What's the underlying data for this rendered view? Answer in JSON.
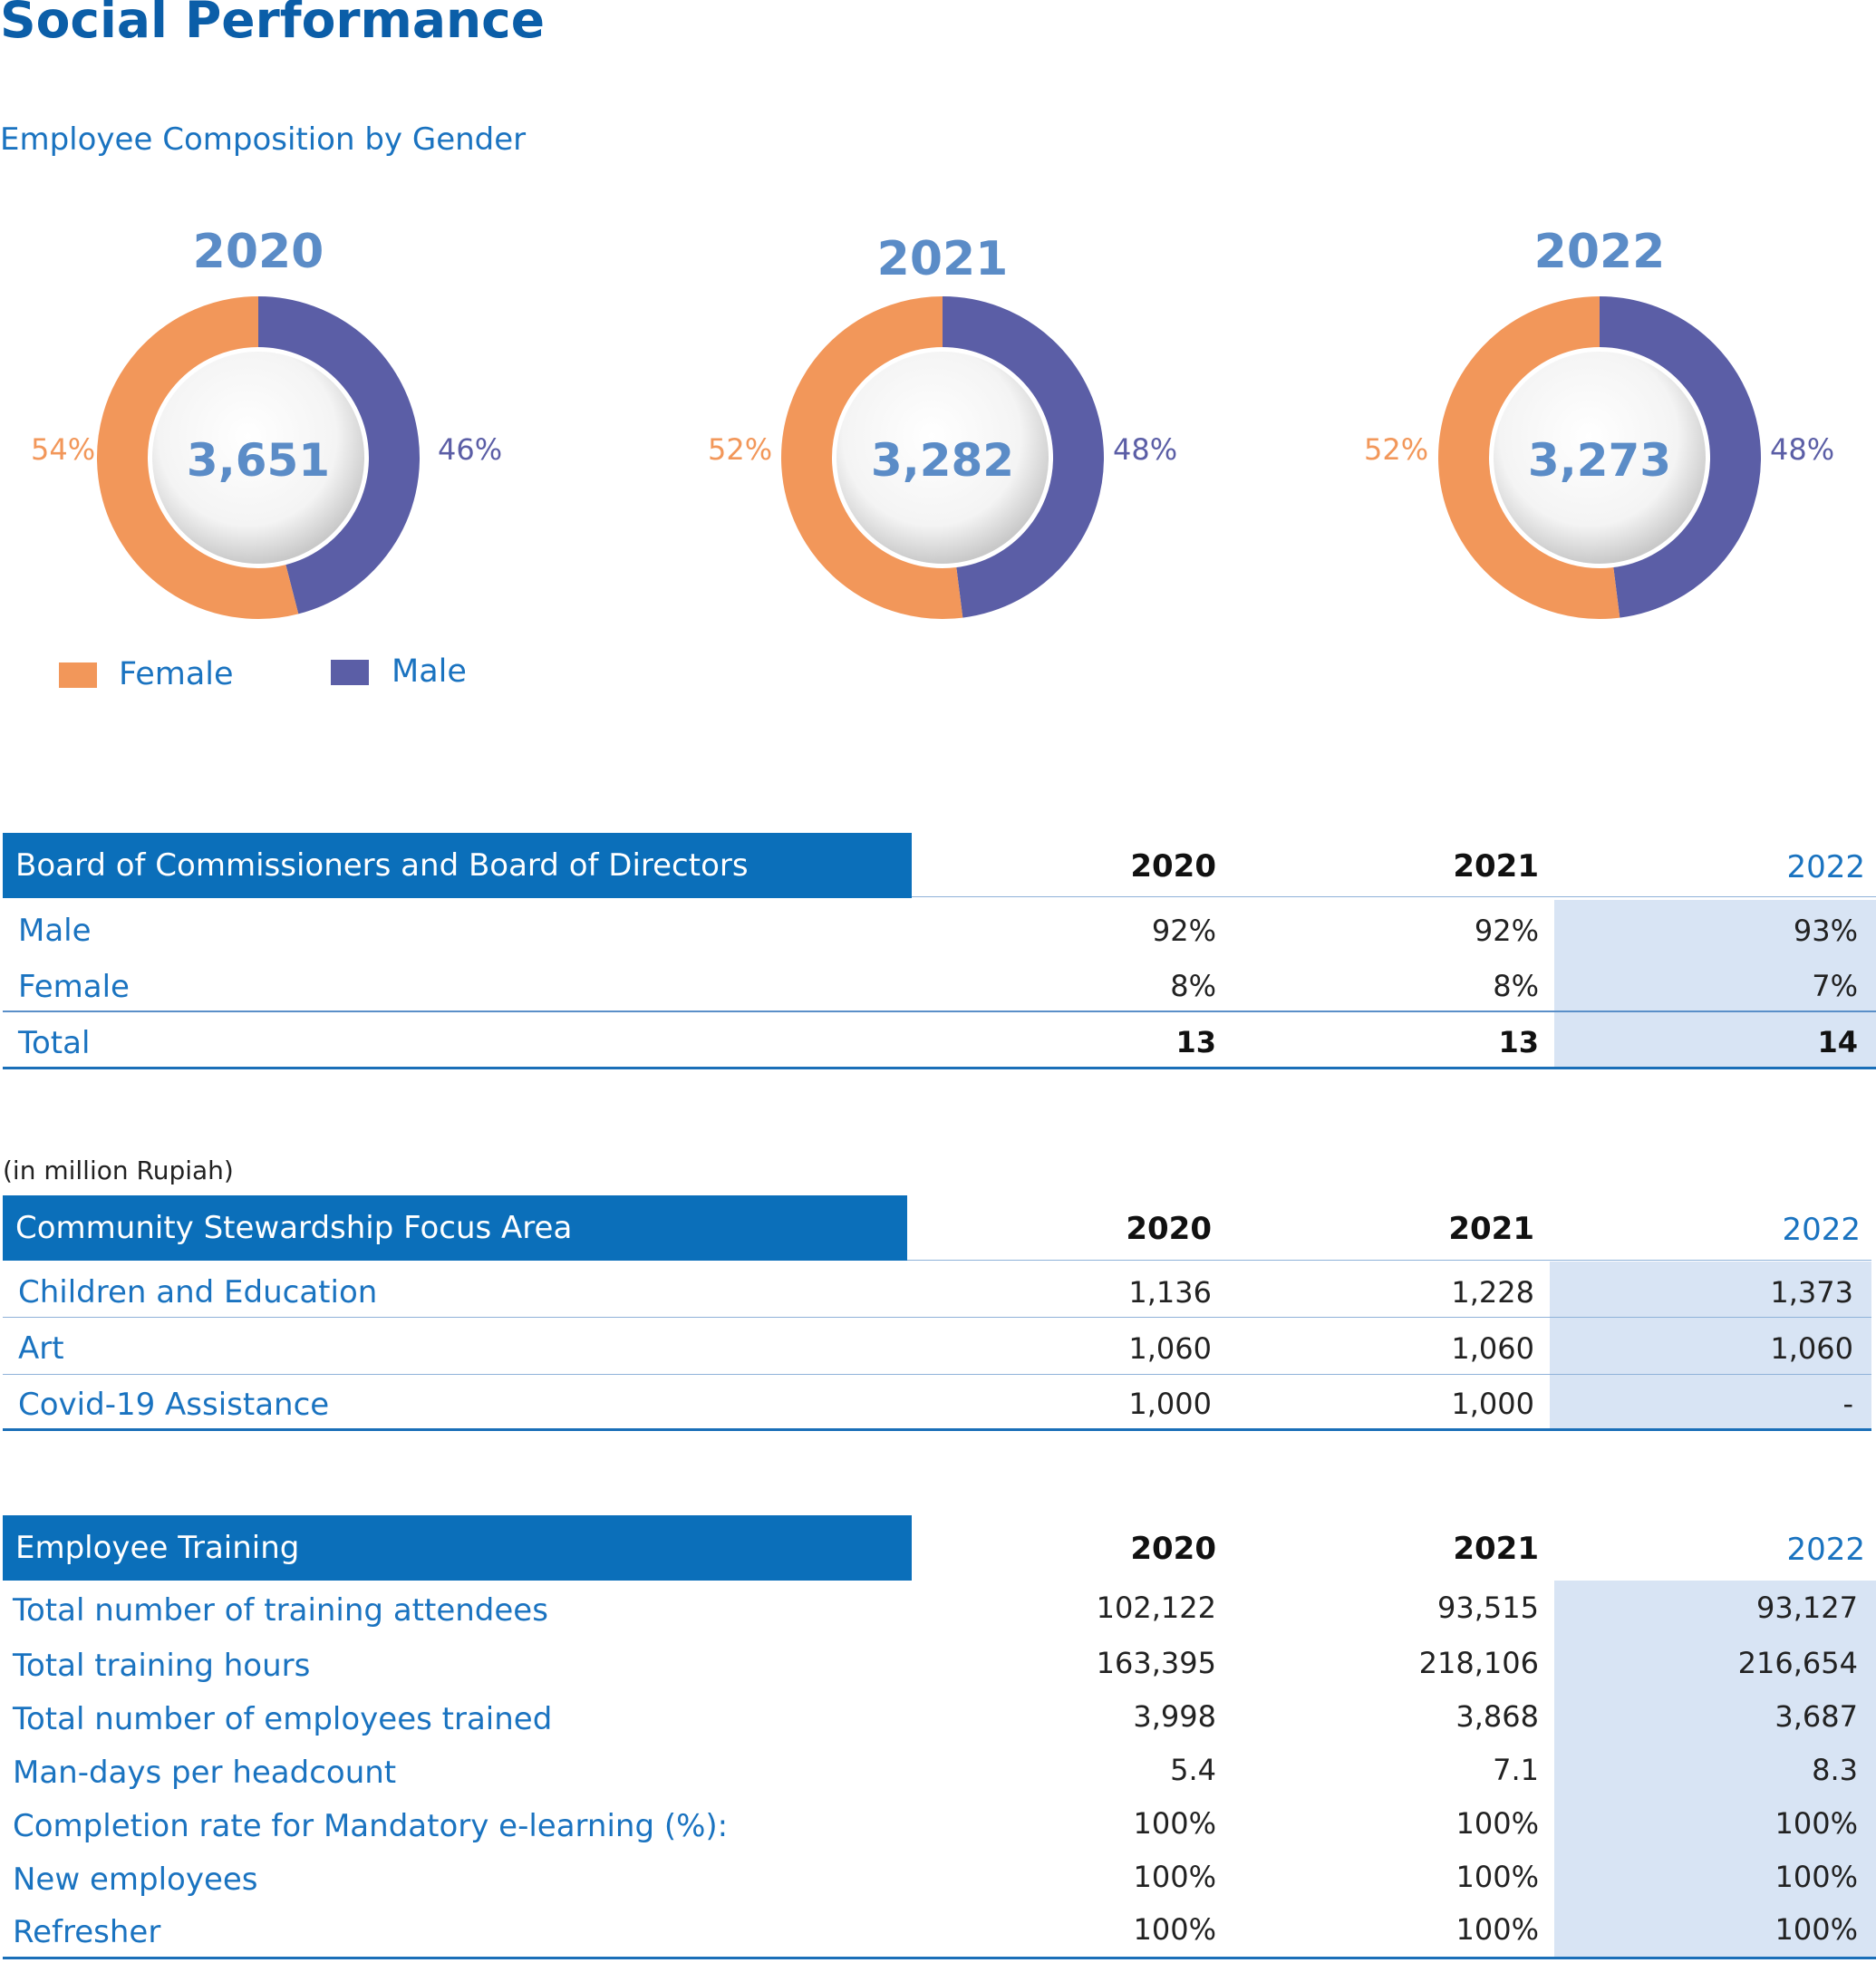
{
  "page": {
    "title": "Social Performance",
    "subtitle": "Employee Composition by Gender"
  },
  "colors": {
    "female": "#f2975a",
    "male": "#5b5ea6",
    "header": "#0b6fba",
    "highlight": "#d8e4f4"
  },
  "chart_data": {
    "type": "pie",
    "variant": "donut",
    "legend": {
      "position": "bottom-left",
      "entries": [
        "Female",
        "Male"
      ]
    },
    "series": [
      {
        "year": "2020",
        "total": "3,651",
        "slices": [
          {
            "name": "Female",
            "value": 54,
            "label": "54%"
          },
          {
            "name": "Male",
            "value": 46,
            "label": "46%"
          }
        ]
      },
      {
        "year": "2021",
        "total": "3,282",
        "slices": [
          {
            "name": "Female",
            "value": 52,
            "label": "52%"
          },
          {
            "name": "Male",
            "value": 48,
            "label": "48%"
          }
        ]
      },
      {
        "year": "2022",
        "total": "3,273",
        "slices": [
          {
            "name": "Female",
            "value": 52,
            "label": "52%"
          },
          {
            "name": "Male",
            "value": 48,
            "label": "48%"
          }
        ]
      }
    ]
  },
  "board": {
    "header": "Board of Commissioners and Board of Directors",
    "years": [
      "2020",
      "2021",
      "2022"
    ],
    "rows": [
      {
        "label": "Male",
        "values": [
          "92%",
          "92%",
          "93%"
        ]
      },
      {
        "label": "Female",
        "values": [
          "8%",
          "8%",
          "7%"
        ]
      },
      {
        "label": "Total",
        "values": [
          "13",
          "13",
          "14"
        ]
      }
    ]
  },
  "community": {
    "note": "(in million Rupiah)",
    "header": "Community Stewardship Focus Area",
    "years": [
      "2020",
      "2021",
      "2022"
    ],
    "rows": [
      {
        "label": "Children and Education",
        "values": [
          "1,136",
          "1,228",
          "1,373"
        ]
      },
      {
        "label": "Art",
        "values": [
          "1,060",
          "1,060",
          "1,060"
        ]
      },
      {
        "label": "Covid-19 Assistance",
        "values": [
          "1,000",
          "1,000",
          "-"
        ]
      }
    ]
  },
  "training": {
    "header": "Employee Training",
    "years": [
      "2020",
      "2021",
      "2022"
    ],
    "rows": [
      {
        "label": "Total number of training attendees",
        "values": [
          "102,122",
          "93,515",
          "93,127"
        ]
      },
      {
        "label": "Total training hours",
        "values": [
          "163,395",
          "218,106",
          "216,654"
        ]
      },
      {
        "label": "Total number of employees trained",
        "values": [
          "3,998",
          "3,868",
          "3,687"
        ]
      },
      {
        "label": "Man-days per headcount",
        "values": [
          "5.4",
          "7.1",
          "8.3"
        ]
      },
      {
        "label": "Completion rate for Mandatory e-learning (%):",
        "values": [
          "100%",
          "100%",
          "100%"
        ]
      },
      {
        "label": "New employees",
        "values": [
          "100%",
          "100%",
          "100%"
        ]
      },
      {
        "label": "Refresher",
        "values": [
          "100%",
          "100%",
          "100%"
        ]
      }
    ]
  }
}
